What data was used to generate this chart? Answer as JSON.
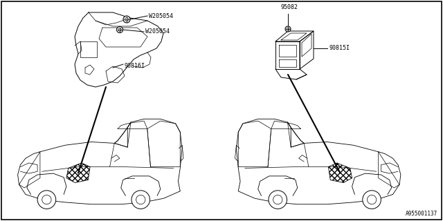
{
  "background_color": "#ffffff",
  "border_color": "#000000",
  "fig_width": 6.4,
  "fig_height": 3.2,
  "dpi": 100,
  "diagram_id": "A955001137",
  "labels": {
    "W205054_top": "W205054",
    "W205054_bot": "W205054",
    "part_90816I": "90816I",
    "part_95082": "95082",
    "part_90815I": "90815I"
  },
  "label_fontsize": 6.0,
  "id_fontsize": 5.5,
  "border_linewidth": 1.2,
  "line_color": "#000000",
  "thin_lw": 0.5,
  "mid_lw": 0.7,
  "leader_lw": 1.5,
  "left_insulator": {
    "ox": 105,
    "oy": 155
  },
  "right_insulator": {
    "ox": 400,
    "oy": 170
  },
  "left_car": {
    "ox": 18,
    "oy": 155
  },
  "right_car": {
    "ox": 328,
    "oy": 155
  }
}
